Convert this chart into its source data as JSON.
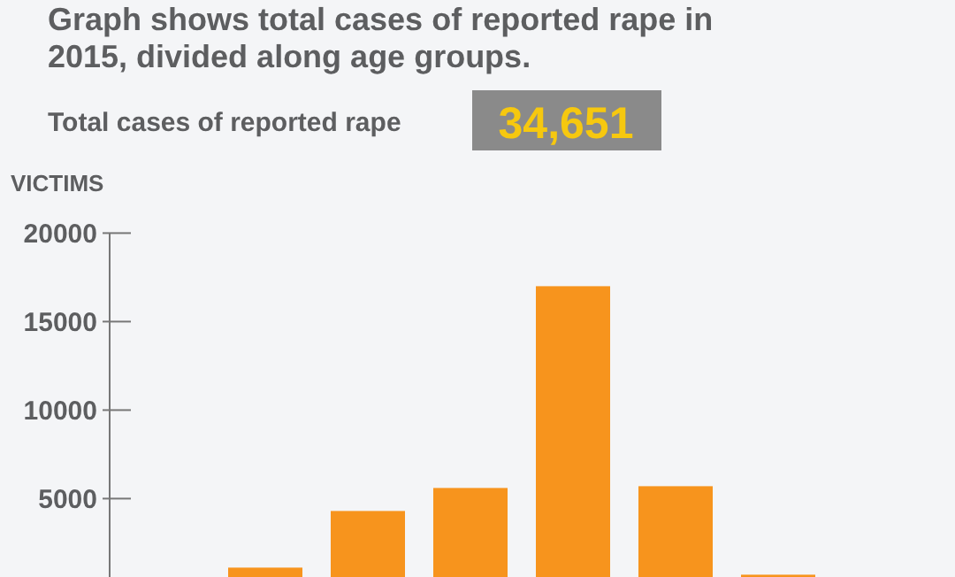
{
  "chart_data": {
    "type": "bar",
    "title": "Graph shows total cases of reported rape in 2015, divided along age groups.",
    "subtitle": "Total cases of reported rape",
    "annotations": [
      "34,651"
    ],
    "ylabel": "VICTIMS",
    "categories": [
      null,
      null,
      null,
      null,
      null,
      null
    ],
    "values": [
      1100,
      4300,
      5600,
      17000,
      5700,
      700
    ],
    "color": "#f7941d",
    "ylim": [
      0,
      20000
    ],
    "yticks": [
      5000,
      10000,
      15000,
      20000
    ],
    "tick_labels": "y",
    "grid": false
  }
}
